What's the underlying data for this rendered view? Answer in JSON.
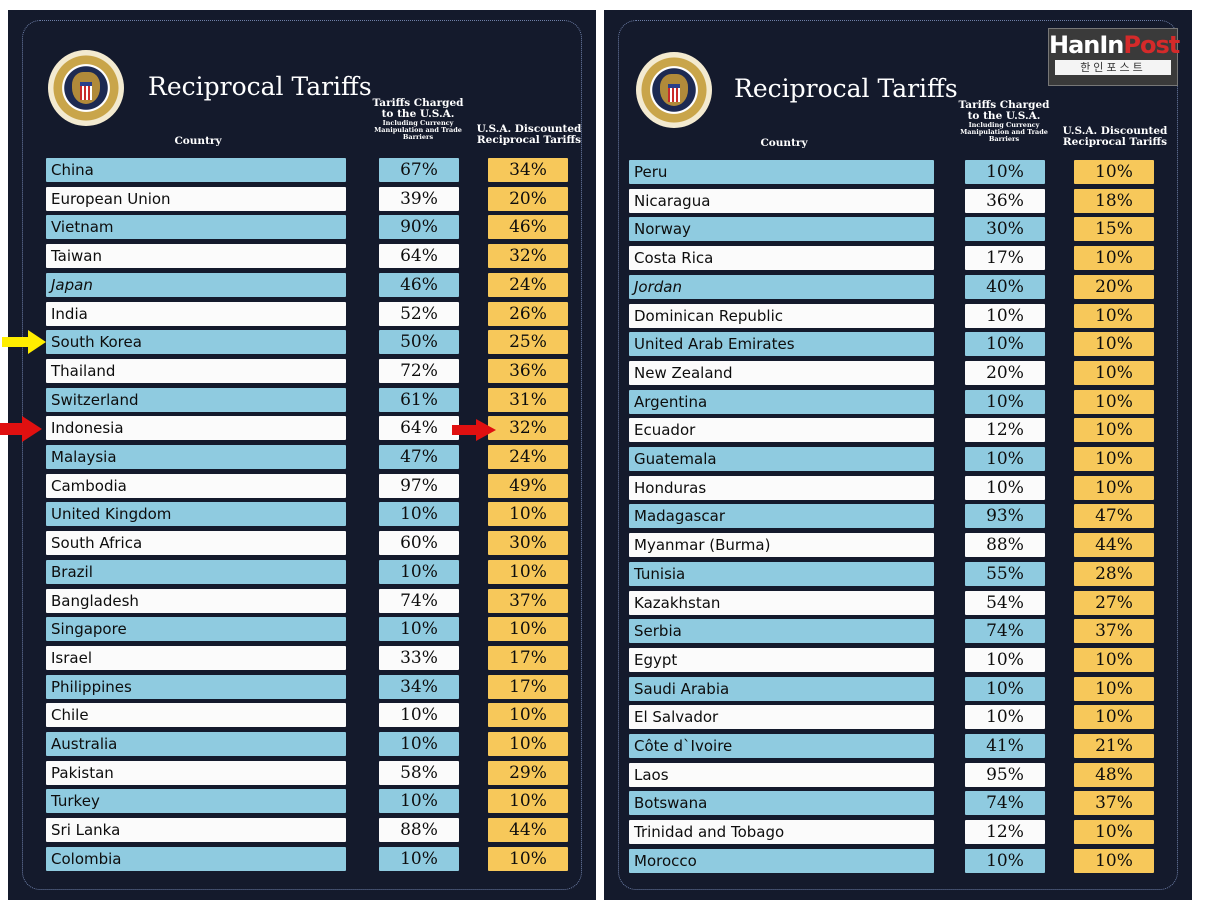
{
  "left": {
    "title": "Reciprocal Tariffs",
    "header_country": "Country",
    "header_charged": "Tariffs Charged to the U.S.A.",
    "header_charged_sub": "Including Currency Manipulation and Trade Barriers",
    "header_discounted": "U.S.A. Discounted Reciprocal Tariffs",
    "rows": [
      {
        "country": "China",
        "charged": "67%",
        "reciprocal": "34%"
      },
      {
        "country": "European Union",
        "charged": "39%",
        "reciprocal": "20%"
      },
      {
        "country": "Vietnam",
        "charged": "90%",
        "reciprocal": "46%"
      },
      {
        "country": "Taiwan",
        "charged": "64%",
        "reciprocal": "32%"
      },
      {
        "country": "Japan",
        "charged": "46%",
        "reciprocal": "24%"
      },
      {
        "country": "India",
        "charged": "52%",
        "reciprocal": "26%"
      },
      {
        "country": "South Korea",
        "charged": "50%",
        "reciprocal": "25%"
      },
      {
        "country": "Thailand",
        "charged": "72%",
        "reciprocal": "36%"
      },
      {
        "country": "Switzerland",
        "charged": "61%",
        "reciprocal": "31%"
      },
      {
        "country": "Indonesia",
        "charged": "64%",
        "reciprocal": "32%"
      },
      {
        "country": "Malaysia",
        "charged": "47%",
        "reciprocal": "24%"
      },
      {
        "country": "Cambodia",
        "charged": "97%",
        "reciprocal": "49%"
      },
      {
        "country": "United Kingdom",
        "charged": "10%",
        "reciprocal": "10%"
      },
      {
        "country": "South Africa",
        "charged": "60%",
        "reciprocal": "30%"
      },
      {
        "country": "Brazil",
        "charged": "10%",
        "reciprocal": "10%"
      },
      {
        "country": "Bangladesh",
        "charged": "74%",
        "reciprocal": "37%"
      },
      {
        "country": "Singapore",
        "charged": "10%",
        "reciprocal": "10%"
      },
      {
        "country": "Israel",
        "charged": "33%",
        "reciprocal": "17%"
      },
      {
        "country": "Philippines",
        "charged": "34%",
        "reciprocal": "17%"
      },
      {
        "country": "Chile",
        "charged": "10%",
        "reciprocal": "10%"
      },
      {
        "country": "Australia",
        "charged": "10%",
        "reciprocal": "10%"
      },
      {
        "country": "Pakistan",
        "charged": "58%",
        "reciprocal": "29%"
      },
      {
        "country": "Turkey",
        "charged": "10%",
        "reciprocal": "10%"
      },
      {
        "country": "Sri Lanka",
        "charged": "88%",
        "reciprocal": "44%"
      },
      {
        "country": "Colombia",
        "charged": "10%",
        "reciprocal": "10%"
      }
    ]
  },
  "right": {
    "title": "Reciprocal Tariffs",
    "header_country": "Country",
    "header_charged": "Tariffs Charged to the U.S.A.",
    "header_charged_sub": "Including Currency Manipulation and Trade Barriers",
    "header_discounted": "U.S.A. Discounted Reciprocal Tariffs",
    "rows": [
      {
        "country": "Peru",
        "charged": "10%",
        "reciprocal": "10%"
      },
      {
        "country": "Nicaragua",
        "charged": "36%",
        "reciprocal": "18%"
      },
      {
        "country": "Norway",
        "charged": "30%",
        "reciprocal": "15%"
      },
      {
        "country": "Costa Rica",
        "charged": "17%",
        "reciprocal": "10%"
      },
      {
        "country": "Jordan",
        "charged": "40%",
        "reciprocal": "20%"
      },
      {
        "country": "Dominican Republic",
        "charged": "10%",
        "reciprocal": "10%"
      },
      {
        "country": "United Arab Emirates",
        "charged": "10%",
        "reciprocal": "10%"
      },
      {
        "country": "New Zealand",
        "charged": "20%",
        "reciprocal": "10%"
      },
      {
        "country": "Argentina",
        "charged": "10%",
        "reciprocal": "10%"
      },
      {
        "country": "Ecuador",
        "charged": "12%",
        "reciprocal": "10%"
      },
      {
        "country": "Guatemala",
        "charged": "10%",
        "reciprocal": "10%"
      },
      {
        "country": "Honduras",
        "charged": "10%",
        "reciprocal": "10%"
      },
      {
        "country": "Madagascar",
        "charged": "93%",
        "reciprocal": "47%"
      },
      {
        "country": "Myanmar (Burma)",
        "charged": "88%",
        "reciprocal": "44%"
      },
      {
        "country": "Tunisia",
        "charged": "55%",
        "reciprocal": "28%"
      },
      {
        "country": "Kazakhstan",
        "charged": "54%",
        "reciprocal": "27%"
      },
      {
        "country": "Serbia",
        "charged": "74%",
        "reciprocal": "37%"
      },
      {
        "country": "Egypt",
        "charged": "10%",
        "reciprocal": "10%"
      },
      {
        "country": "Saudi Arabia",
        "charged": "10%",
        "reciprocal": "10%"
      },
      {
        "country": "El Salvador",
        "charged": "10%",
        "reciprocal": "10%"
      },
      {
        "country": "Côte d`Ivoire",
        "charged": "41%",
        "reciprocal": "21%"
      },
      {
        "country": "Laos",
        "charged": "95%",
        "reciprocal": "48%"
      },
      {
        "country": "Botswana",
        "charged": "74%",
        "reciprocal": "37%"
      },
      {
        "country": "Trinidad and Tobago",
        "charged": "12%",
        "reciprocal": "10%"
      },
      {
        "country": "Morocco",
        "charged": "10%",
        "reciprocal": "10%"
      }
    ]
  },
  "logo": {
    "main_a": "HanIn",
    "main_b": "Post",
    "sub": "한인포스트"
  },
  "colors": {
    "panel": "#141a2c",
    "row_blue": "#8fcbe0",
    "row_white": "#fbfbfb",
    "reciprocal_gold": "#f7c85a",
    "arrow_yellow": "#ffee00",
    "arrow_red": "#e01010"
  }
}
